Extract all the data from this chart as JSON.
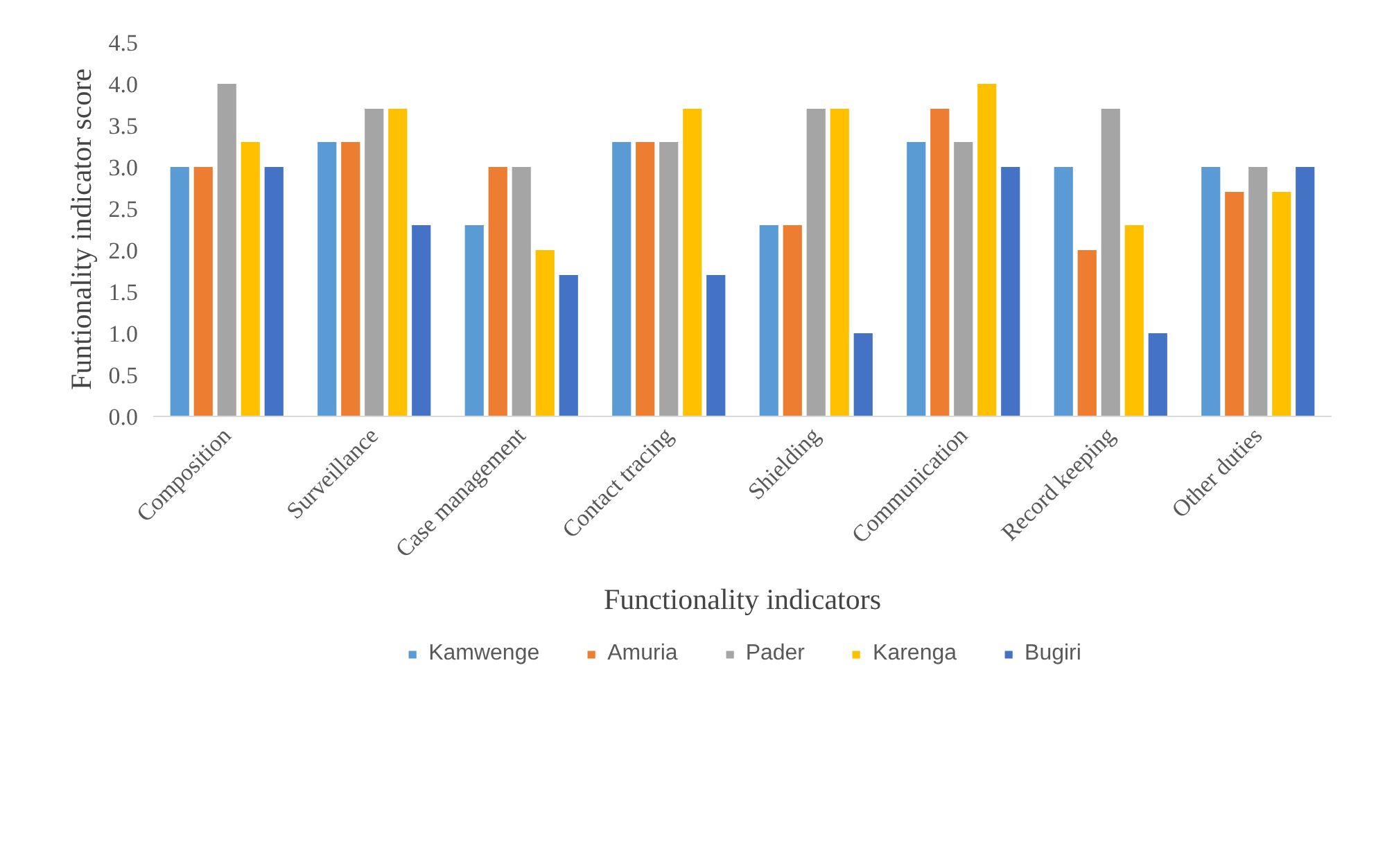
{
  "chart_data": {
    "type": "bar",
    "xlabel": "Functionality indicators",
    "ylabel": "Funtionality indicator score",
    "categories": [
      "Composition",
      "Surveillance",
      "Case management",
      "Contact tracing",
      "Shielding",
      "Communication",
      "Record keeping",
      "Other duties"
    ],
    "series": [
      {
        "name": "Kamwenge",
        "color": "#5b9bd5",
        "values": [
          3.0,
          3.3,
          2.3,
          3.3,
          2.3,
          3.3,
          3.0,
          3.0
        ]
      },
      {
        "name": "Amuria",
        "color": "#ed7d31",
        "values": [
          3.0,
          3.3,
          3.0,
          3.3,
          2.3,
          3.7,
          2.0,
          2.7
        ]
      },
      {
        "name": "Pader",
        "color": "#a5a5a5",
        "values": [
          4.0,
          3.7,
          3.0,
          3.3,
          3.7,
          3.3,
          3.7,
          3.0
        ]
      },
      {
        "name": "Karenga",
        "color": "#ffc000",
        "values": [
          3.3,
          3.7,
          2.0,
          3.7,
          3.7,
          4.0,
          2.3,
          2.7
        ]
      },
      {
        "name": "Bugiri",
        "color": "#4472c4",
        "values": [
          3.0,
          2.3,
          1.7,
          1.7,
          1.0,
          3.0,
          1.0,
          3.0
        ]
      }
    ],
    "ylim": [
      0,
      4.5
    ],
    "yticks": [
      {
        "value": 0,
        "label": "0.0"
      },
      {
        "value": 0.5,
        "label": "0.5"
      },
      {
        "value": 1,
        "label": "1.0"
      },
      {
        "value": 1.5,
        "label": "1.5"
      },
      {
        "value": 2,
        "label": "2.0"
      },
      {
        "value": 2.5,
        "label": "2.5"
      },
      {
        "value": 3,
        "label": "3.0"
      },
      {
        "value": 3.5,
        "label": "3.5"
      },
      {
        "value": 4,
        "label": "4.0"
      },
      {
        "value": 4.5,
        "label": "4.5"
      }
    ],
    "grid": false,
    "legend": "bottom"
  }
}
